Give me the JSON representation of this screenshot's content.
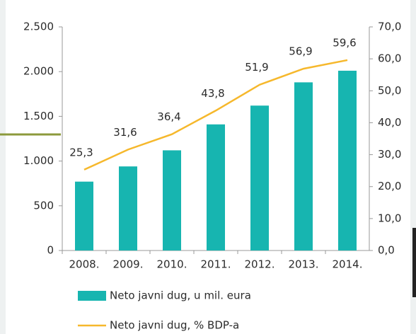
{
  "chart_data": {
    "type": "bar",
    "categories": [
      "2008.",
      "2009.",
      "2010.",
      "2011.",
      "2012.",
      "2013.",
      "2014."
    ],
    "series": [
      {
        "name": "Neto javni dug, u mil. eura",
        "type": "bar",
        "color": "#17b5b0",
        "axis": "y",
        "values": [
          770,
          940,
          1120,
          1410,
          1620,
          1880,
          2010
        ]
      },
      {
        "name": "Neto javni dug, % BDP-a",
        "type": "line",
        "color": "#f6b82c",
        "axis": "y2",
        "values": [
          25.3,
          31.6,
          36.4,
          43.8,
          51.9,
          56.9,
          59.6
        ],
        "value_labels": [
          "25,3",
          "31,6",
          "36,4",
          "43,8",
          "51,9",
          "56,9",
          "59,6"
        ]
      }
    ],
    "ylim": [
      0,
      2500
    ],
    "yticks": [
      0,
      500,
      {
        "value": 1000,
        "label": "1.000"
      },
      {
        "value": 1500,
        "label": "1.500"
      },
      {
        "value": 2000,
        "label": "2.000"
      },
      {
        "value": 2500,
        "label": "2.500"
      }
    ],
    "y2lim": [
      0,
      70
    ],
    "y2ticks": [
      {
        "value": 0,
        "label": "0,0"
      },
      {
        "value": 10,
        "label": "10,0"
      },
      {
        "value": 20,
        "label": "20,0"
      },
      {
        "value": 30,
        "label": "30,0"
      },
      {
        "value": 40,
        "label": "40,0"
      },
      {
        "value": 50,
        "label": "50,0"
      },
      {
        "value": 60,
        "label": "60,0"
      },
      {
        "value": 70,
        "label": "70,0"
      }
    ],
    "legend": "bottom"
  }
}
